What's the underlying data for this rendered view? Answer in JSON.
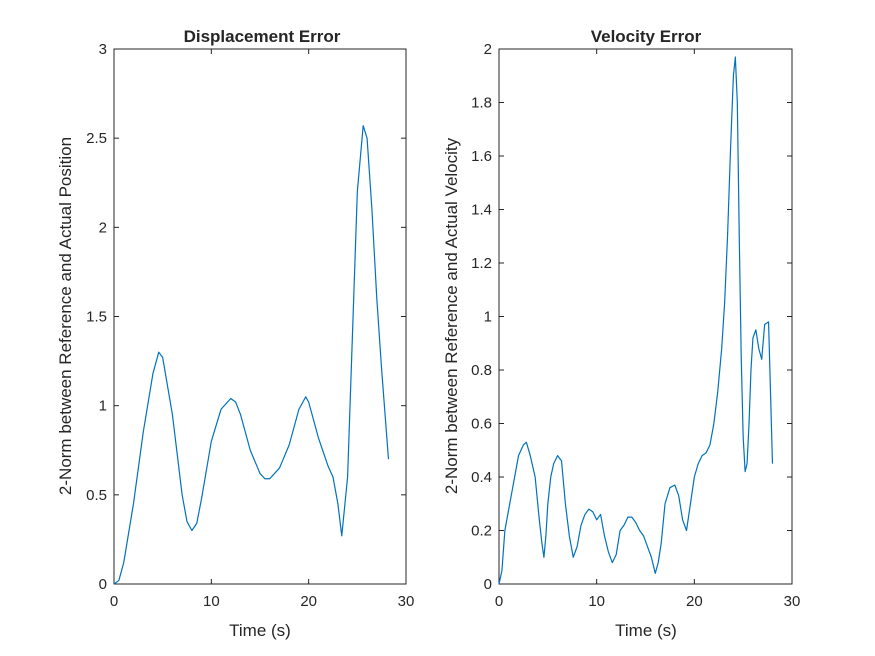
{
  "chart_data": [
    {
      "type": "line",
      "title": "Displacement Error",
      "xlabel": "Time (s)",
      "ylabel": "2-Norm between Reference and Actual Position",
      "xlim": [
        0,
        30
      ],
      "ylim": [
        0,
        3
      ],
      "xticks": [
        0,
        10,
        20,
        30
      ],
      "yticks": [
        0,
        0.5,
        1,
        1.5,
        2,
        2.5,
        3
      ],
      "grid": false,
      "color": "#0072BD",
      "series": [
        {
          "x": [
            0,
            0.5,
            1,
            2,
            3,
            4,
            4.6,
            5,
            6,
            7,
            7.5,
            8,
            8.5,
            9,
            10,
            11,
            12,
            12.5,
            13,
            14,
            15,
            15.5,
            16,
            17,
            18,
            19,
            19.7,
            20,
            21,
            22,
            22.5,
            23,
            23.4,
            24,
            24.5,
            25,
            25.6,
            26,
            26.5,
            27,
            27.5,
            28.2
          ],
          "y": [
            0,
            0.02,
            0.12,
            0.45,
            0.85,
            1.18,
            1.3,
            1.27,
            0.95,
            0.5,
            0.35,
            0.3,
            0.34,
            0.48,
            0.8,
            0.98,
            1.04,
            1.02,
            0.95,
            0.75,
            0.62,
            0.59,
            0.59,
            0.65,
            0.78,
            0.98,
            1.05,
            1.02,
            0.82,
            0.66,
            0.6,
            0.45,
            0.27,
            0.6,
            1.4,
            2.2,
            2.57,
            2.5,
            2.1,
            1.6,
            1.2,
            0.7
          ]
        }
      ]
    },
    {
      "type": "line",
      "title": "Velocity Error",
      "xlabel": "Time (s)",
      "ylabel": "2-Norm between Reference and Actual Velocity",
      "xlim": [
        0,
        30
      ],
      "ylim": [
        0,
        2
      ],
      "xticks": [
        0,
        10,
        20,
        30
      ],
      "yticks": [
        0,
        0.2,
        0.4,
        0.6,
        0.8,
        1,
        1.2,
        1.4,
        1.6,
        1.8,
        2
      ],
      "grid": false,
      "color": "#0072BD",
      "series": [
        {
          "x": [
            0,
            0.3,
            0.6,
            1,
            1.5,
            2,
            2.5,
            2.8,
            3.2,
            3.7,
            4.1,
            4.4,
            4.6,
            4.8,
            5.0,
            5.3,
            5.6,
            6.0,
            6.4,
            6.8,
            7.2,
            7.6,
            8.0,
            8.4,
            8.8,
            9.2,
            9.6,
            10.0,
            10.4,
            10.8,
            11.2,
            11.6,
            12.0,
            12.4,
            12.8,
            13.2,
            13.6,
            14.0,
            14.4,
            14.8,
            15.2,
            15.6,
            16.0,
            16.3,
            16.6,
            17.0,
            17.5,
            18.0,
            18.4,
            18.8,
            19.2,
            19.6,
            20.0,
            20.4,
            20.8,
            21.2,
            21.6,
            22.0,
            22.4,
            22.8,
            23.1,
            23.4,
            23.7,
            24.0,
            24.2,
            24.4,
            24.6,
            24.8,
            25.0,
            25.2,
            25.4,
            25.6,
            25.8,
            26.0,
            26.3,
            26.6,
            26.9,
            27.2,
            27.6,
            28.0
          ],
          "y": [
            0,
            0.05,
            0.2,
            0.28,
            0.38,
            0.48,
            0.52,
            0.53,
            0.48,
            0.4,
            0.25,
            0.15,
            0.1,
            0.18,
            0.3,
            0.4,
            0.45,
            0.48,
            0.46,
            0.3,
            0.18,
            0.1,
            0.14,
            0.22,
            0.26,
            0.28,
            0.27,
            0.24,
            0.26,
            0.18,
            0.12,
            0.08,
            0.11,
            0.2,
            0.22,
            0.25,
            0.25,
            0.23,
            0.2,
            0.18,
            0.14,
            0.1,
            0.04,
            0.08,
            0.15,
            0.3,
            0.36,
            0.37,
            0.33,
            0.24,
            0.2,
            0.3,
            0.4,
            0.45,
            0.48,
            0.49,
            0.52,
            0.6,
            0.72,
            0.88,
            1.05,
            1.3,
            1.62,
            1.9,
            1.97,
            1.8,
            1.3,
            0.85,
            0.55,
            0.42,
            0.45,
            0.6,
            0.8,
            0.92,
            0.95,
            0.88,
            0.84,
            0.97,
            0.98,
            0.45
          ]
        }
      ]
    }
  ]
}
